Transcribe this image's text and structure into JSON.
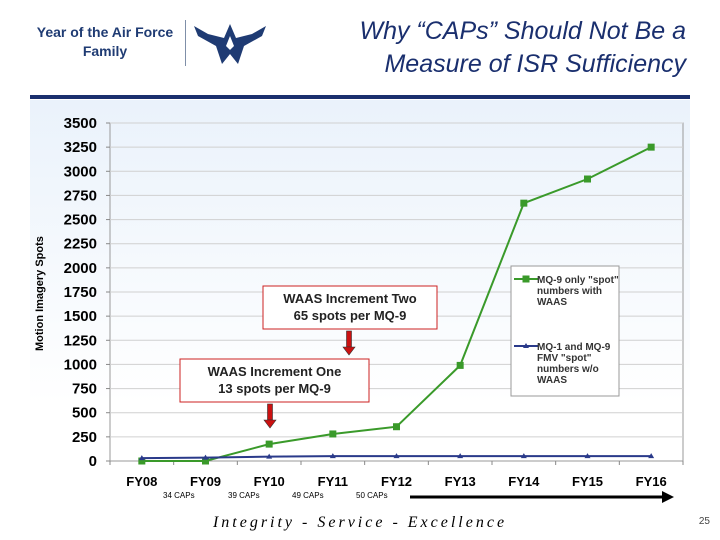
{
  "header": {
    "logo_line1": "Year of the Air Force",
    "logo_line2": "Family",
    "title_line1": "Why “CAPs” Should Not Be a",
    "title_line2": "Measure of ISR Sufficiency"
  },
  "chart_data": {
    "type": "line",
    "title": "",
    "xlabel": "",
    "ylabel": "Motion Imagery Spots",
    "ylim": [
      0,
      3500
    ],
    "yticks": [
      0,
      250,
      500,
      750,
      1000,
      1250,
      1500,
      1750,
      2000,
      2250,
      2500,
      2750,
      3000,
      3250,
      3500
    ],
    "categories": [
      "FY08",
      "FY09",
      "FY10",
      "FY11",
      "FY12",
      "FY13",
      "FY14",
      "FY15",
      "FY16"
    ],
    "series": [
      {
        "name": "MQ-9 only \"spot\" numbers with WAAS",
        "legend_lines": [
          "MQ-9 only \"spot\"",
          "numbers with",
          "WAAS"
        ],
        "color": "#3a9a2a",
        "marker": "square",
        "values": [
          0,
          0,
          175,
          280,
          355,
          990,
          2670,
          2920,
          3250
        ]
      },
      {
        "name": "MQ-1 and MQ-9 FMV \"spot\" numbers w/o WAAS",
        "legend_lines": [
          "MQ-1 and MQ-9",
          "FMV \"spot\"",
          "numbers w/o",
          "WAAS"
        ],
        "color": "#2a3a8a",
        "marker": "triangle",
        "values": [
          30,
          35,
          45,
          50,
          50,
          50,
          50,
          50,
          50
        ]
      }
    ],
    "annotations": [
      {
        "lines": [
          "WAAS Increment Two",
          "65 spots per MQ-9"
        ],
        "arrow_category": "FY11"
      },
      {
        "lines": [
          "WAAS Increment One",
          "13 spots per MQ-9"
        ],
        "arrow_category": "FY10"
      }
    ],
    "caps_labels": [
      "34 CAPs",
      "39 CAPs",
      "49 CAPs",
      "50 CAPs"
    ],
    "legend_position": "right"
  },
  "footer": {
    "motto": "Integrity - Service - Excellence",
    "page_number": "25"
  },
  "colors": {
    "navy": "#1a2f6e",
    "green": "#3a9a2a",
    "blue": "#2a3a8a",
    "arrow_red": "#cc1111",
    "box_border": "#cc2222"
  }
}
